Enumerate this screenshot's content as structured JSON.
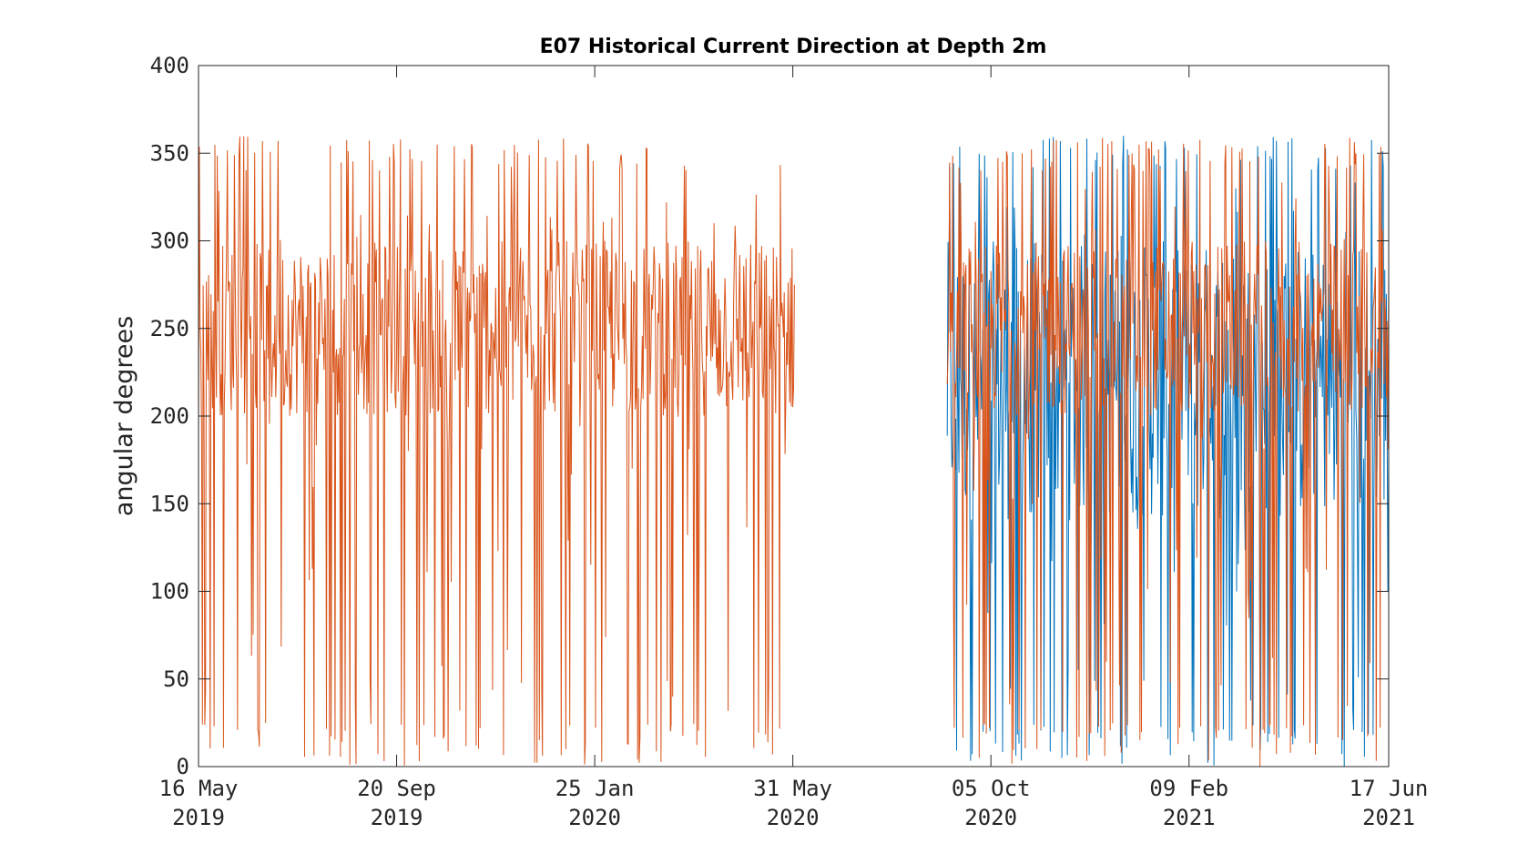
{
  "chart_data": {
    "type": "line",
    "title": "E07 Historical Current Direction at Depth 2m",
    "xlabel": "",
    "ylabel": "angular degrees",
    "ylim": [
      0,
      400
    ],
    "xlim": [
      "2019-05-16",
      "2021-06-17"
    ],
    "yticks": [
      "0",
      "50",
      "100",
      "150",
      "200",
      "250",
      "300",
      "350",
      "400"
    ],
    "xticks": [
      {
        "date": "2019-05-16",
        "line1": "16 May",
        "line2": "2019"
      },
      {
        "date": "2019-09-20",
        "line1": "20 Sep",
        "line2": "2019"
      },
      {
        "date": "2020-01-25",
        "line1": "25 Jan",
        "line2": "2020"
      },
      {
        "date": "2020-05-31",
        "line1": "31 May",
        "line2": "2020"
      },
      {
        "date": "2020-10-05",
        "line1": "05 Oct",
        "line2": "2020"
      },
      {
        "date": "2021-02-09",
        "line1": "09 Feb",
        "line2": "2021"
      },
      {
        "date": "2021-06-17",
        "line1": "17 Jun",
        "line2": "2021"
      }
    ],
    "grid": false,
    "series": [
      {
        "color": "#0072BD",
        "segments": [
          [
            "2020-09-07",
            "2021-06-17"
          ]
        ],
        "values_range": [
          0,
          360
        ]
      },
      {
        "color": "#D95319",
        "segments": [
          [
            "2019-05-16",
            "2020-06-01"
          ],
          [
            "2020-09-07",
            "2021-06-17"
          ]
        ],
        "values_range": [
          0,
          360
        ],
        "typical_band": [
          200,
          300
        ]
      }
    ]
  }
}
